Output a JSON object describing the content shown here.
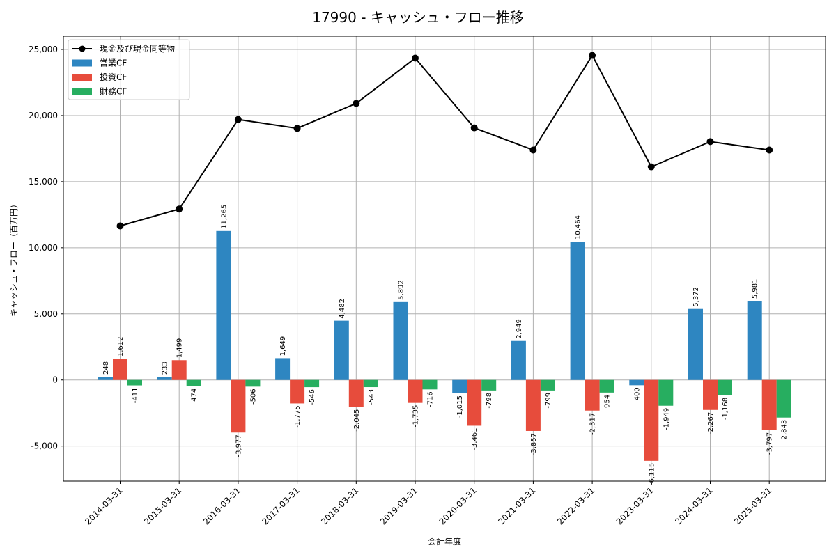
{
  "chart_data": {
    "type": "bar",
    "title": "17990 - キャッシュ・フロー推移",
    "xlabel": "会計年度",
    "ylabel": "キャッシュ・フロー（百万円）",
    "categories": [
      "2014-03-31",
      "2015-03-31",
      "2016-03-31",
      "2017-03-31",
      "2018-03-31",
      "2019-03-31",
      "2020-03-31",
      "2021-03-31",
      "2022-03-31",
      "2023-03-31",
      "2024-03-31",
      "2025-03-31"
    ],
    "ylim": [
      -7650,
      26000
    ],
    "yticks": [
      -5000,
      0,
      5000,
      10000,
      15000,
      20000,
      25000
    ],
    "ytick_labels": [
      "-5,000",
      "0",
      "5,000",
      "10,000",
      "15,000",
      "20,000",
      "25,000"
    ],
    "grid": true,
    "legend_position": "top-left",
    "series": [
      {
        "name": "営業CF",
        "kind": "bar",
        "color": "#2e86c1",
        "values": [
          248,
          233,
          11265,
          1649,
          4482,
          5892,
          -1015,
          2949,
          10464,
          -400,
          5372,
          5981
        ],
        "labels": [
          "248",
          "233",
          "11,265",
          "1,649",
          "4,482",
          "5,892",
          "-1,015",
          "2,949",
          "10,464",
          "-400",
          "5,372",
          "5,981"
        ]
      },
      {
        "name": "投資CF",
        "kind": "bar",
        "color": "#e74c3c",
        "values": [
          1612,
          1499,
          -3977,
          -1775,
          -2045,
          -1735,
          -3461,
          -3857,
          -2317,
          -6115,
          -2267,
          -3797
        ],
        "labels": [
          "1,612",
          "1,499",
          "-3,977",
          "-1,775",
          "-2,045",
          "-1,735",
          "-3,461",
          "-3,857",
          "-2,317",
          "-6,115",
          "-2,267",
          "-3,797"
        ]
      },
      {
        "name": "財務CF",
        "kind": "bar",
        "color": "#27ae60",
        "values": [
          -411,
          -474,
          -506,
          -546,
          -543,
          -716,
          -798,
          -799,
          -954,
          -1949,
          -1168,
          -2843
        ],
        "labels": [
          "-411",
          "-474",
          "-506",
          "-546",
          "-543",
          "-716",
          "-798",
          "-799",
          "-954",
          "-1,949",
          "-1,168",
          "-2,843"
        ]
      },
      {
        "name": "現金及び現金同等物",
        "kind": "line",
        "color": "#000000",
        "values": [
          11650,
          12930,
          19700,
          19030,
          20920,
          24340,
          19070,
          17390,
          24550,
          16120,
          18030,
          17390
        ]
      }
    ]
  }
}
